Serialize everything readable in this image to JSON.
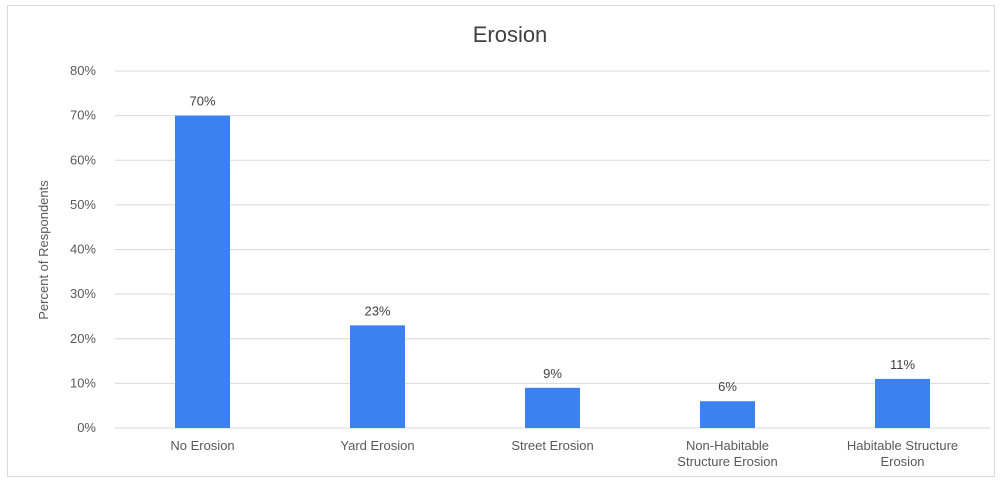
{
  "chart_data": {
    "type": "bar",
    "title": "Erosion",
    "ylabel": "Percent of Respondents",
    "xlabel": "",
    "ylim": [
      0,
      80
    ],
    "yticks": [
      "0%",
      "10%",
      "20%",
      "30%",
      "40%",
      "50%",
      "60%",
      "70%",
      "80%"
    ],
    "categories": [
      [
        "No Erosion"
      ],
      [
        "Yard Erosion"
      ],
      [
        "Street Erosion"
      ],
      [
        "Non-Habitable",
        "Structure Erosion"
      ],
      [
        "Habitable Structure",
        "Erosion"
      ]
    ],
    "values": [
      70,
      23,
      9,
      6,
      11
    ],
    "data_labels": [
      "70%",
      "23%",
      "9%",
      "6%",
      "11%"
    ],
    "grid": true,
    "legend": "none",
    "bar_color": "#3b82f0",
    "grid_color": "#d9d9d9"
  }
}
